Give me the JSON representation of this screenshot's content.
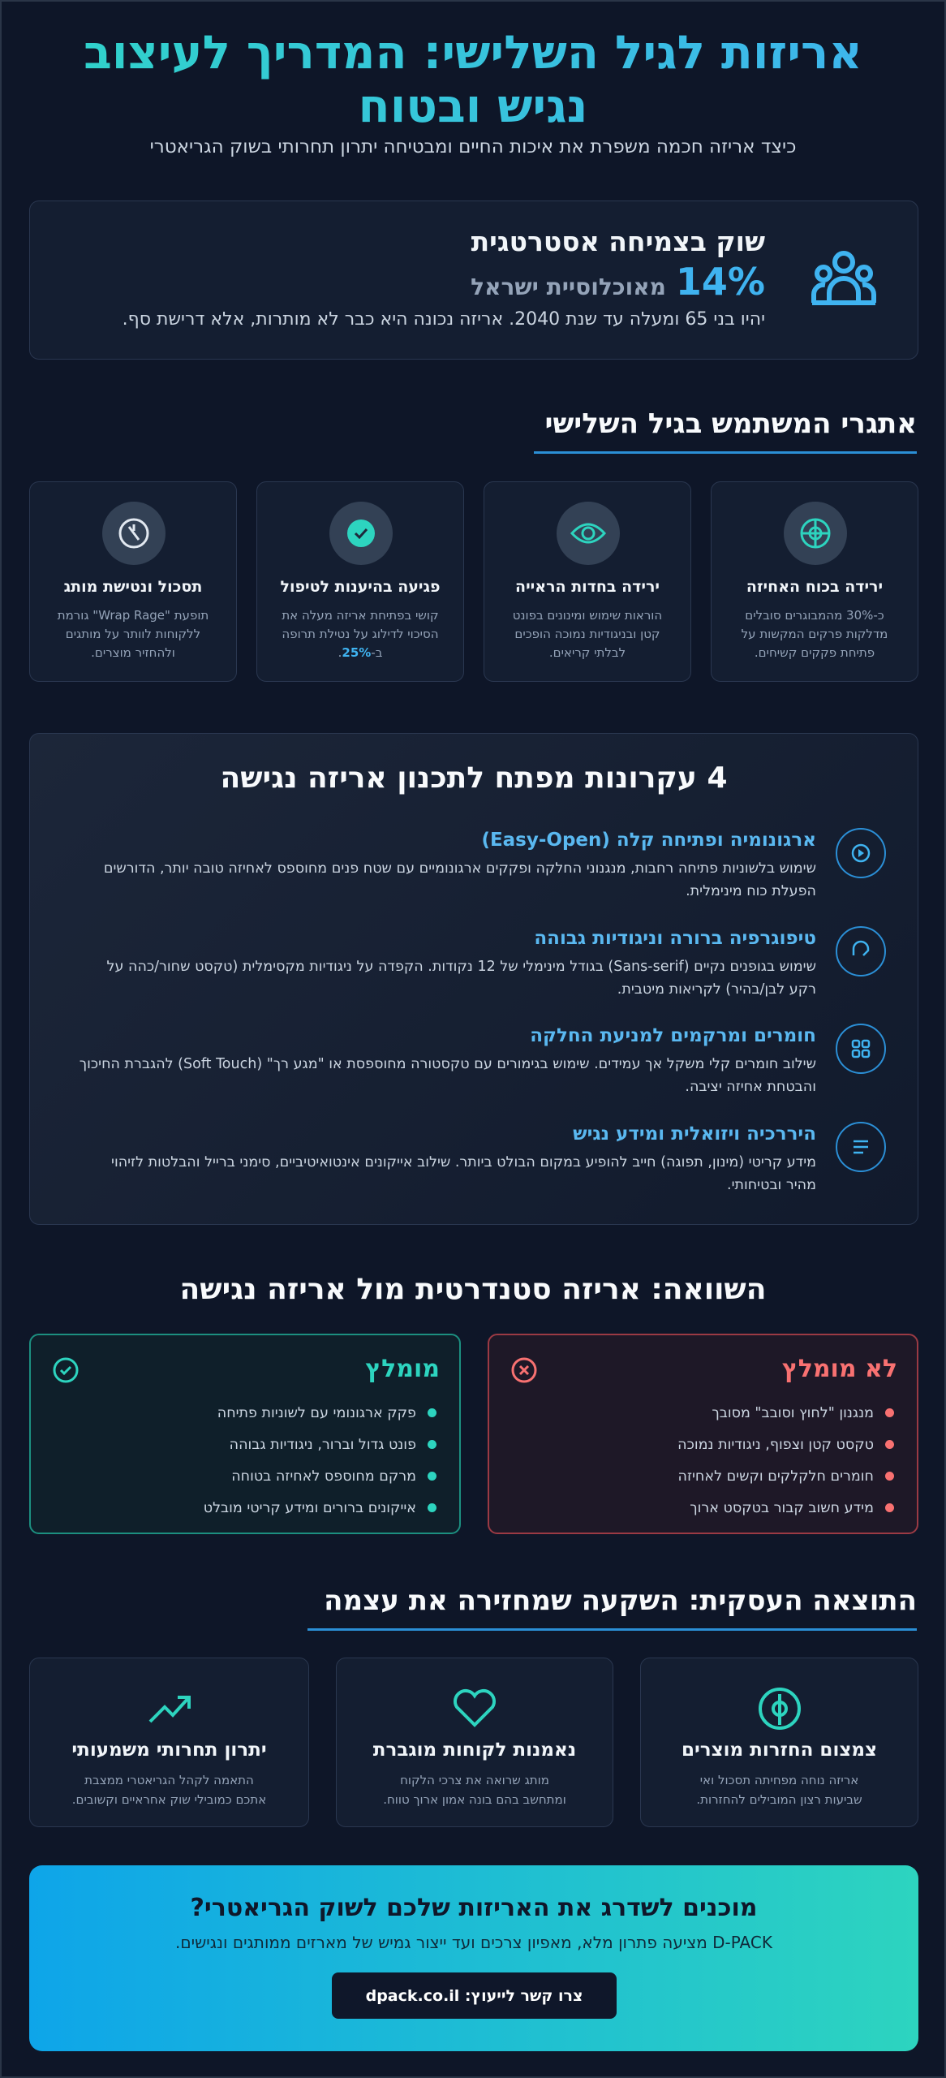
{
  "header": {
    "title": "אריזות לגיל השלישי: המדריך לעיצוב נגיש ובטוח",
    "subtitle": "כיצד אריזה חכמה משפרת את איכות החיים ומבטיחה יתרון תחרותי בשוק הגריאטרי"
  },
  "stat": {
    "heading": "שוק בצמיחה אסטרטגית",
    "value": "14%",
    "value_label": "מאוכלוסיית ישראל",
    "text": "יהיו בני 65 ומעלה עד שנת 2040. אריזה נכונה היא כבר לא מותרות, אלא דרישת סף."
  },
  "challenges": {
    "heading": "אתגרי המשתמש בגיל השלישי",
    "cards": [
      {
        "title": "ירידה בכוח האחיזה",
        "text": "כ-30% מהמבוגרים סובלים מדלקות פרקים המקשות על פתיחת פקקים קשיחים."
      },
      {
        "title": "ירידה בחדות הראייה",
        "text": "הוראות שימוש ומינונים בפונט קטן ובניגודיות נמוכה הופכים לבלתי קריאים."
      },
      {
        "title": "פגיעה בהיענות לטיפול",
        "text": "קושי בפתיחת אריזה מעלה את הסיכוי לדילוג על נטילת תרופה ב-",
        "highlight": "25%",
        "text_end": "."
      },
      {
        "title": "תסכול ונטישת מותג",
        "text": "תופעת \"Wrap Rage\" גורמת ללקוחות לוותר על מותגים ולהחזיר מוצרים."
      }
    ]
  },
  "principles": {
    "heading": "4 עקרונות מפתח לתכנון אריזה נגישה",
    "items": [
      {
        "title": "ארגונומיה ופתיחה קלה (Easy-Open)",
        "text": "שימוש בלשוניות פתיחה רחבות, מנגנוני החלקה ופקקים ארגונומיים עם שטח פנים מחוספס לאחיזה טובה יותר, הדורשים הפעלת כוח מינימלית."
      },
      {
        "title": "טיפוגרפיה ברורה וניגודיות גבוהה",
        "text": "שימוש בגופנים נקיים (Sans-serif) בגודל מינימלי של 12 נקודות. הקפדה על ניגודיות מקסימלית (טקסט שחור/כהה על רקע לבן/בהיר) לקריאות מיטבית."
      },
      {
        "title": "חומרים ומרקמים למניעת החלקה",
        "text": "שילוב חומרים קלי משקל אך עמידים. שימוש בגימורים עם טקסטורה מחוספסת או \"מגע רך\" (Soft Touch) להגברת החיכוך והבטחת אחיזה יציבה."
      },
      {
        "title": "היררכיה ויזואלית ומידע נגיש",
        "text": "מידע קריטי (מינון, תפוגה) חייב להופיע במקום הבולט ביותר. שילוב אייקונים אינטואיטיביים, סימני ברייל והבלטות לזיהוי מהיר ובטיחותי."
      }
    ]
  },
  "comparison": {
    "heading": "השוואה: אריזה סטנדרטית מול אריזה נגישה",
    "not_recommended": {
      "title": "לא מומלץ",
      "items": [
        "מנגנון \"לחוץ וסובב\" מסובך",
        "טקסט קטן וצפוף, ניגודיות נמוכה",
        "חומרים חלקלקים וקשים לאחיזה",
        "מידע חשוב קבור בטקסט ארוך"
      ]
    },
    "recommended": {
      "title": "מומלץ",
      "items": [
        "פקק ארגונומי עם לשוניות פתיחה",
        "פונט גדול וברור, ניגודיות גבוהה",
        "מרקם מחוספס לאחיזה בטוחה",
        "אייקונים ברורים ומידע קריטי מובלט"
      ]
    }
  },
  "business": {
    "heading": "התוצאה העסקית: השקעה שמחזירה את עצמה",
    "cards": [
      {
        "title": "צמצום החזרות מוצרים",
        "text": "אריזה נוחה מפחיתה תסכול ואי שביעות רצון המובילים להחזרות."
      },
      {
        "title": "נאמנות לקוחות מוגברת",
        "text": "מותג שרואה את צרכי הלקוח ומתחשב בהם בונה אמון ארוך טווח."
      },
      {
        "title": "יתרון תחרותי משמעותי",
        "text": "התאמה לקהל הגריאטרי ממצבת אתכם כמובילי שוק אחראיים וקשובים."
      }
    ]
  },
  "cta": {
    "title": "מוכנים לשדרג את האריזות שלכם לשוק הגריאטרי?",
    "text": "D-PACK מציעה פתרון מלא, מאפיון צרכים ועד ייצור גמיש של מארזים ממותגים ונגישים.",
    "button": "צרו קשר לייעוץ: dpack.co.il"
  }
}
